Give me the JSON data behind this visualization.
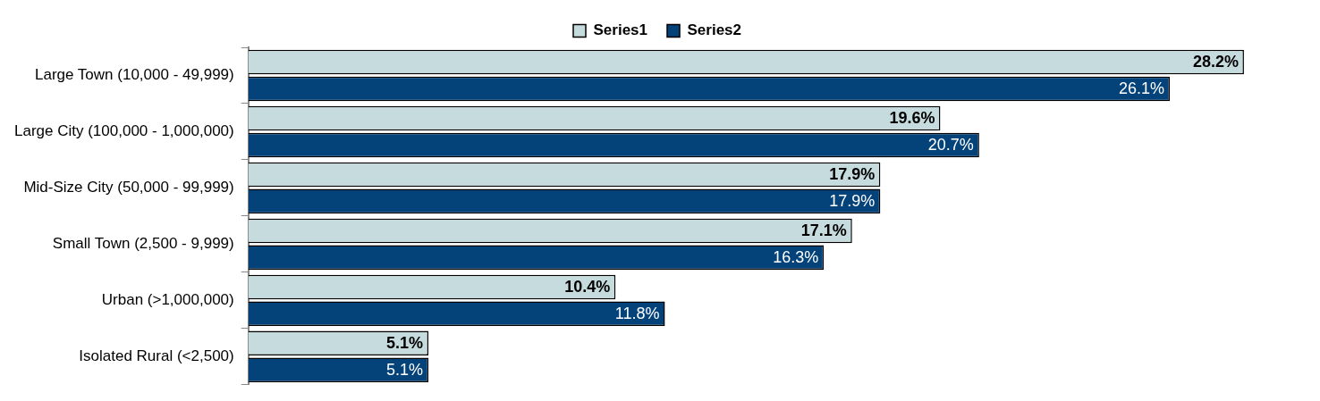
{
  "chart_data": {
    "type": "bar",
    "orientation": "horizontal",
    "legend": "top",
    "categories": [
      "Large Town (10,000 - 49,999)",
      "Large City (100,000 - 1,000,000)",
      "Mid-Size City (50,000 - 99,999)",
      "Small Town (2,500 - 9,999)",
      "Urban (>1,000,000)",
      "Isolated Rural (<2,500)"
    ],
    "series": [
      {
        "name": "Series1",
        "color": "#c6dbdd",
        "values": [
          28.2,
          19.6,
          17.9,
          17.1,
          10.4,
          5.1
        ],
        "value_labels": [
          "28.2%",
          "19.6%",
          "17.9%",
          "17.1%",
          "10.4%",
          "5.1%"
        ]
      },
      {
        "name": "Series2",
        "color": "#04427a",
        "values": [
          26.1,
          20.7,
          17.9,
          16.3,
          11.8,
          5.1
        ],
        "value_labels": [
          "26.1%",
          "20.7%",
          "17.9%",
          "16.3%",
          "11.8%",
          "5.1%"
        ]
      }
    ]
  }
}
